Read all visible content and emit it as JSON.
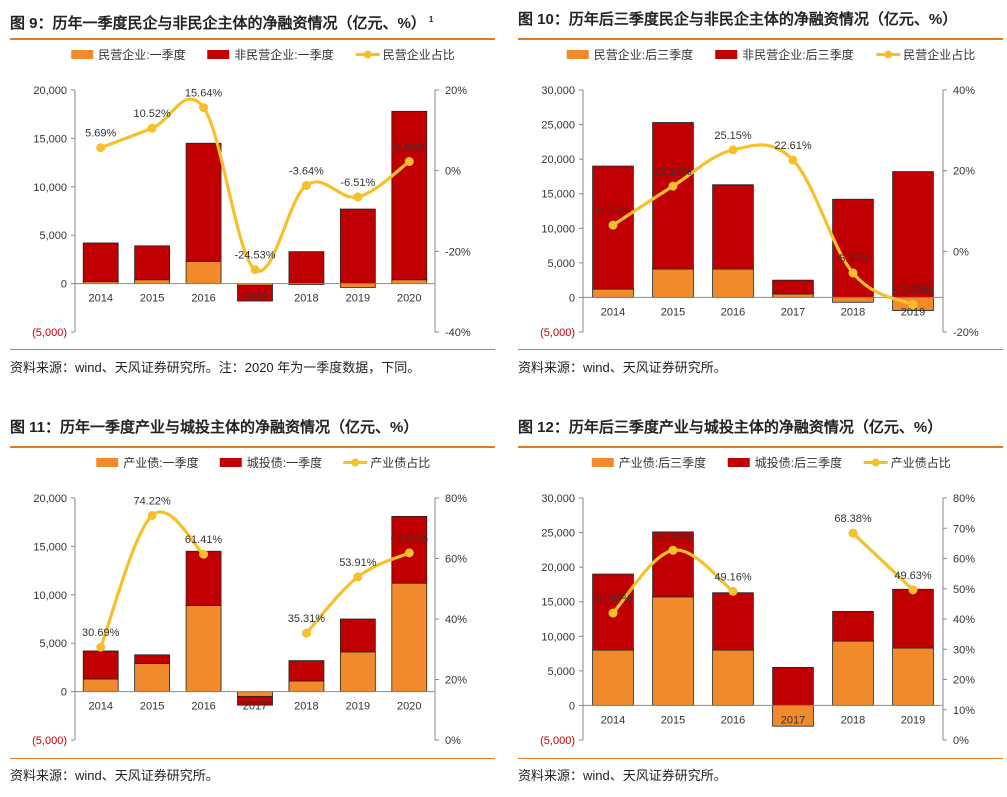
{
  "colors": {
    "orange": "#f08a2a",
    "red": "#c00000",
    "line": "#f5c02c",
    "accent": "#e07b22",
    "negative": "#c00000"
  },
  "panels": [
    {
      "title": "图 9：历年一季度民企与非民企主体的净融资情况（亿元、%）",
      "sup": "1",
      "source": "资料来源：wind、天风证券研究所。注：2020 年为一季度数据，下同。",
      "chart_data": {
        "type": "bar",
        "stacked": true,
        "categories": [
          "2014",
          "2015",
          "2016",
          "2017",
          "2018",
          "2019",
          "2020"
        ],
        "series": [
          {
            "name": "民营企业:一季度",
            "kind": "bar",
            "values": [
              200,
              400,
              2300,
              -200,
              -100,
              -400,
              400
            ]
          },
          {
            "name": "非民营企业:一季度",
            "kind": "bar",
            "values": [
              4000,
              3500,
              12200,
              -1600,
              3300,
              7700,
              17400
            ]
          },
          {
            "name": "民营企业占比",
            "kind": "line",
            "axis": "right",
            "values": [
              5.69,
              10.52,
              15.64,
              -24.53,
              -3.64,
              -6.51,
              2.26
            ]
          }
        ],
        "data_labels": [
          "5.69%",
          "10.52%",
          "15.64%",
          "-24.53%",
          "-3.64%",
          "-6.51%",
          "2.26%"
        ],
        "ylim": [
          -5000,
          20000
        ],
        "yticks": [
          -5000,
          0,
          5000,
          10000,
          15000,
          20000
        ],
        "ytick_labels": [
          "(5,000)",
          "0",
          "5,000",
          "10,000",
          "15,000",
          "20,000"
        ],
        "y2lim": [
          -40,
          20
        ],
        "y2ticks": [
          -40,
          -20,
          0,
          20
        ],
        "y2tick_labels": [
          "-40%",
          "-20%",
          "0%",
          "20%"
        ],
        "legend": "top"
      }
    },
    {
      "title": "图 10：历年后三季度民企与非民企主体的净融资情况（亿元、%）",
      "sup": "",
      "source": "资料来源：wind、天风证券研究所。",
      "chart_data": {
        "type": "bar",
        "stacked": true,
        "categories": [
          "2014",
          "2015",
          "2016",
          "2017",
          "2018",
          "2019"
        ],
        "series": [
          {
            "name": "民营企业:后三季度",
            "kind": "bar",
            "values": [
              1200,
              4100,
              4100,
              500,
              -700,
              -1900
            ]
          },
          {
            "name": "非民营企业:后三季度",
            "kind": "bar",
            "values": [
              17800,
              21200,
              12200,
              2000,
              14200,
              18200
            ]
          },
          {
            "name": "民营企业占比",
            "kind": "line",
            "axis": "right",
            "values": [
              6.51,
              16.17,
              25.15,
              22.61,
              -5.37,
              -13.23
            ]
          }
        ],
        "data_labels": [
          "6.51%",
          "16.17%",
          "25.15%",
          "22.61%",
          "-5.37%",
          "-13.23%"
        ],
        "ylim": [
          -5000,
          30000
        ],
        "yticks": [
          -5000,
          0,
          5000,
          10000,
          15000,
          20000,
          25000,
          30000
        ],
        "ytick_labels": [
          "(5,000)",
          "0",
          "5,000",
          "10,000",
          "15,000",
          "20,000",
          "25,000",
          "30,000"
        ],
        "y2lim": [
          -20,
          40
        ],
        "y2ticks": [
          -20,
          0,
          20,
          40
        ],
        "y2tick_labels": [
          "-20%",
          "0%",
          "20%",
          "40%"
        ],
        "legend": "top"
      }
    },
    {
      "title": "图 11：历年一季度产业与城投主体的净融资情况（亿元、%）",
      "sup": "",
      "source": "资料来源：wind、天风证券研究所。",
      "chart_data": {
        "type": "bar",
        "stacked": true,
        "categories": [
          "2014",
          "2015",
          "2016",
          "2017",
          "2018",
          "2019",
          "2020"
        ],
        "series": [
          {
            "name": "产业债:一季度",
            "kind": "bar",
            "values": [
              1300,
              2900,
              8900,
              -500,
              1100,
              4100,
              11200
            ]
          },
          {
            "name": "城投债:一季度",
            "kind": "bar",
            "values": [
              2900,
              900,
              5600,
              -900,
              2100,
              3400,
              6900
            ]
          },
          {
            "name": "产业债占比",
            "kind": "line",
            "axis": "right",
            "values": [
              30.69,
              74.22,
              61.41,
              null,
              35.31,
              53.91,
              61.86
            ]
          }
        ],
        "data_labels": [
          "30.69%",
          "74.22%",
          "61.41%",
          "",
          "35.31%",
          "53.91%",
          "61.86%"
        ],
        "ylim": [
          -5000,
          20000
        ],
        "yticks": [
          -5000,
          0,
          5000,
          10000,
          15000,
          20000
        ],
        "ytick_labels": [
          "(5,000)",
          "0",
          "5,000",
          "10,000",
          "15,000",
          "20,000"
        ],
        "y2lim": [
          0,
          80
        ],
        "y2ticks": [
          0,
          20,
          40,
          60,
          80
        ],
        "y2tick_labels": [
          "0%",
          "20%",
          "40%",
          "60%",
          "80%"
        ],
        "legend": "top"
      }
    },
    {
      "title": "图 12：历年后三季度产业与城投主体的净融资情况（亿元、%）",
      "sup": "",
      "source": "资料来源：wind、天风证券研究所。",
      "chart_data": {
        "type": "bar",
        "stacked": true,
        "categories": [
          "2014",
          "2015",
          "2016",
          "2017",
          "2018",
          "2019"
        ],
        "series": [
          {
            "name": "产业债:后三季度",
            "kind": "bar",
            "values": [
              8000,
              15700,
              8000,
              -3000,
              9300,
              8300
            ]
          },
          {
            "name": "城投债:后三季度",
            "kind": "bar",
            "values": [
              11000,
              9400,
              8300,
              5500,
              4300,
              8500
            ]
          },
          {
            "name": "产业债占比",
            "kind": "line",
            "axis": "right",
            "values": [
              41.97,
              62.71,
              49.16,
              null,
              68.38,
              49.63
            ]
          }
        ],
        "data_labels": [
          "41.97%",
          "62.71%",
          "49.16%",
          "",
          "68.38%",
          "49.63%"
        ],
        "ylim": [
          -5000,
          30000
        ],
        "yticks": [
          -5000,
          0,
          5000,
          10000,
          15000,
          20000,
          25000,
          30000
        ],
        "ytick_labels": [
          "(5,000)",
          "0",
          "5,000",
          "10,000",
          "15,000",
          "20,000",
          "25,000",
          "30,000"
        ],
        "y2lim": [
          0,
          80
        ],
        "y2ticks": [
          0,
          10,
          20,
          30,
          40,
          50,
          60,
          70,
          80
        ],
        "y2tick_labels": [
          "0%",
          "10%",
          "20%",
          "30%",
          "40%",
          "50%",
          "60%",
          "70%",
          "80%"
        ],
        "legend": "top"
      }
    }
  ]
}
